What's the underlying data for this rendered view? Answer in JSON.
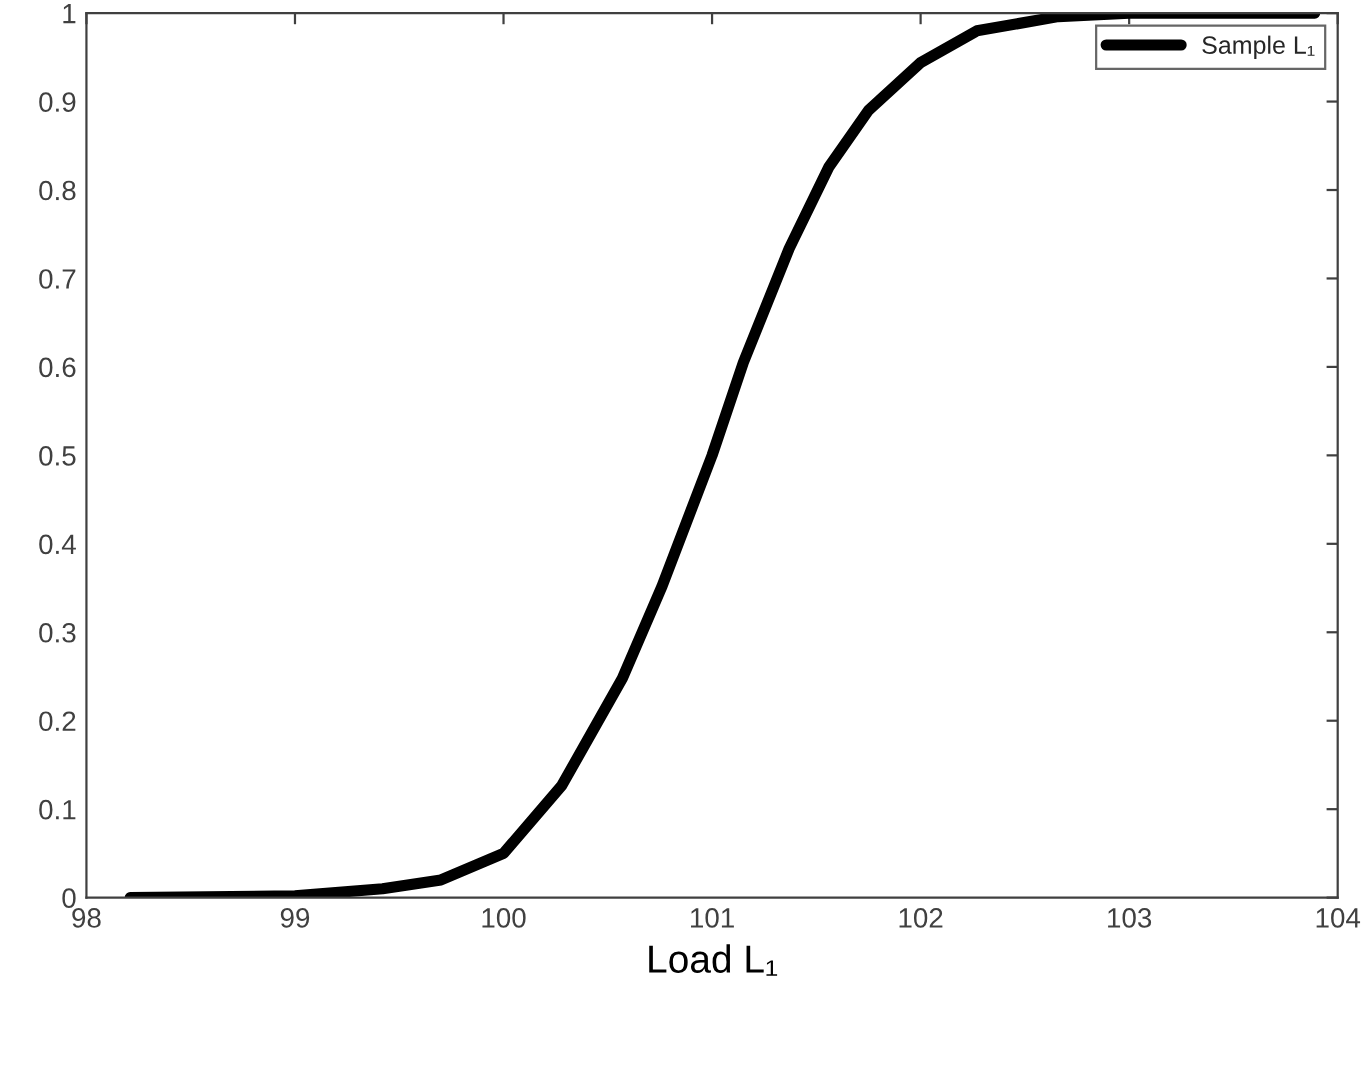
{
  "chart_data": {
    "type": "line",
    "xlabel": "Load L₁",
    "x": [
      98.21,
      99,
      99.42,
      99.7,
      100,
      100.28,
      100.57,
      100.76,
      101,
      101.15,
      101.37,
      101.56,
      101.75,
      102,
      102.27,
      102.66,
      103,
      103.89
    ],
    "series": [
      {
        "name": "Sample L₁",
        "color": "#000000",
        "values": [
          0,
          0.002,
          0.01,
          0.02,
          0.05,
          0.127,
          0.248,
          0.352,
          0.5,
          0.605,
          0.734,
          0.826,
          0.89,
          0.944,
          0.98,
          0.996,
          1.0,
          1.0
        ]
      }
    ],
    "xlim": [
      98,
      104
    ],
    "xticks": [
      98,
      99,
      100,
      101,
      102,
      103,
      104
    ],
    "ylim": [
      0,
      1
    ],
    "yticks": [
      0,
      0.1,
      0.2,
      0.3,
      0.4,
      0.5,
      0.6,
      0.7,
      0.8,
      0.9,
      1
    ],
    "legend": "top right",
    "grid": false,
    "line_style": "solid",
    "marker": "none"
  }
}
